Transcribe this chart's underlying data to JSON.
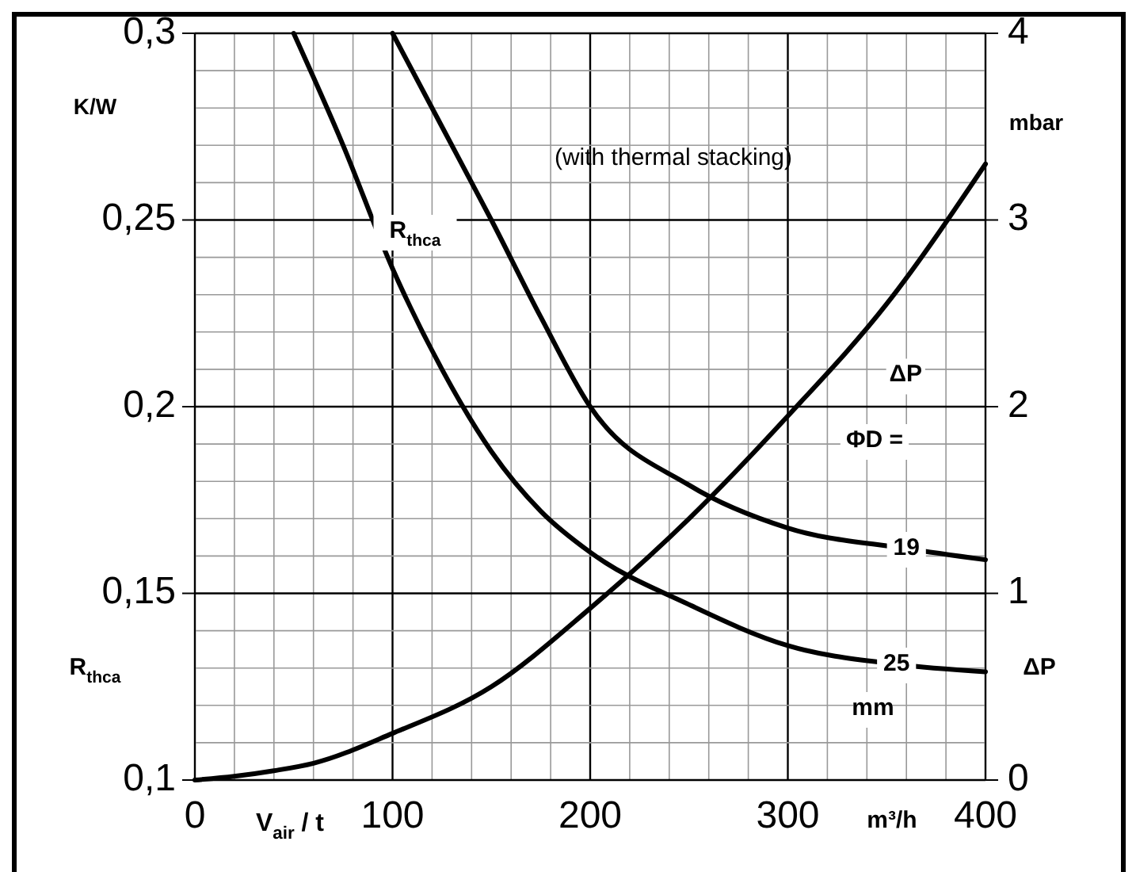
{
  "chart_data": {
    "type": "line",
    "subtitle": "(with thermal stacking)",
    "xlabel": "V$_{air}$ / t",
    "ylabel": "K/W",
    "y2label": "mbar",
    "xlim": [
      0,
      400
    ],
    "ylim": [
      0.1,
      0.3
    ],
    "y2lim": [
      0,
      4
    ],
    "xticks": [
      0,
      {
        "value": 20,
        "label": null
      },
      {
        "value": 40,
        "label": null
      },
      {
        "value": 60,
        "label": null
      },
      {
        "value": 80,
        "label": null
      },
      100,
      {
        "value": 120,
        "label": null
      },
      {
        "value": 140,
        "label": null
      },
      {
        "value": 160,
        "label": null
      },
      {
        "value": 180,
        "label": null
      },
      200,
      {
        "value": 220,
        "label": null
      },
      {
        "value": 240,
        "label": null
      },
      {
        "value": 260,
        "label": null
      },
      {
        "value": 280,
        "label": null
      },
      300,
      {
        "value": 320,
        "label": null
      },
      {
        "value": 340,
        "label": null
      },
      {
        "value": 360,
        "label": null
      },
      {
        "value": 380,
        "label": null
      },
      400
    ],
    "yticks": [
      {
        "value": 0.1,
        "label": "0,1"
      },
      {
        "value": 0.11,
        "label": null
      },
      {
        "value": 0.12,
        "label": null
      },
      {
        "value": 0.13,
        "label": null
      },
      {
        "value": 0.14,
        "label": null
      },
      {
        "value": 0.15,
        "label": "0,15"
      },
      {
        "value": 0.16,
        "label": null
      },
      {
        "value": 0.17,
        "label": null
      },
      {
        "value": 0.18,
        "label": null
      },
      {
        "value": 0.19,
        "label": null
      },
      {
        "value": 0.2,
        "label": "0,2"
      },
      {
        "value": 0.21,
        "label": null
      },
      {
        "value": 0.22,
        "label": null
      },
      {
        "value": 0.23,
        "label": null
      },
      {
        "value": 0.24,
        "label": null
      },
      {
        "value": 0.25,
        "label": "0,25"
      },
      {
        "value": 0.26,
        "label": null
      },
      {
        "value": 0.27,
        "label": null
      },
      {
        "value": 0.28,
        "label": null
      },
      {
        "value": 0.29,
        "label": null
      },
      {
        "value": 0.3,
        "label": "0,3"
      }
    ],
    "y2ticks": [
      0,
      1,
      2,
      3,
      4
    ],
    "grid": true,
    "line_style": "solid",
    "marker": "none",
    "series": [
      {
        "name": "19",
        "color": "#000000",
        "x": [
          100,
          125,
          150,
          175,
          200,
          250,
          300,
          360,
          400
        ],
        "values": [
          0.3,
          0.275,
          0.25,
          0.224,
          0.2,
          0.179,
          0.1675,
          0.162,
          0.159
        ]
      },
      {
        "name": "25",
        "color": "#000000",
        "x": [
          50,
          75,
          100,
          125,
          150,
          175,
          200,
          250,
          300,
          355,
          400
        ],
        "values": [
          0.3,
          0.27,
          0.237,
          0.21,
          0.188,
          0.172,
          0.161,
          0.147,
          0.136,
          0.131,
          0.129
        ]
      },
      {
        "name": "ΔP",
        "color": "#000000",
        "axis": "y2",
        "x": [
          0,
          20,
          40,
          60,
          100,
          150,
          200,
          250,
          300,
          350,
          400
        ],
        "values": [
          0,
          0.02,
          0.05,
          0.09,
          0.25,
          0.5,
          0.92,
          1.4,
          1.95,
          2.55,
          3.3
        ]
      }
    ],
    "annotations": [
      "R$_{thca}$",
      "ΦD =",
      "mm",
      "R$_{thca}$",
      "m³/h",
      "ΔP"
    ]
  }
}
